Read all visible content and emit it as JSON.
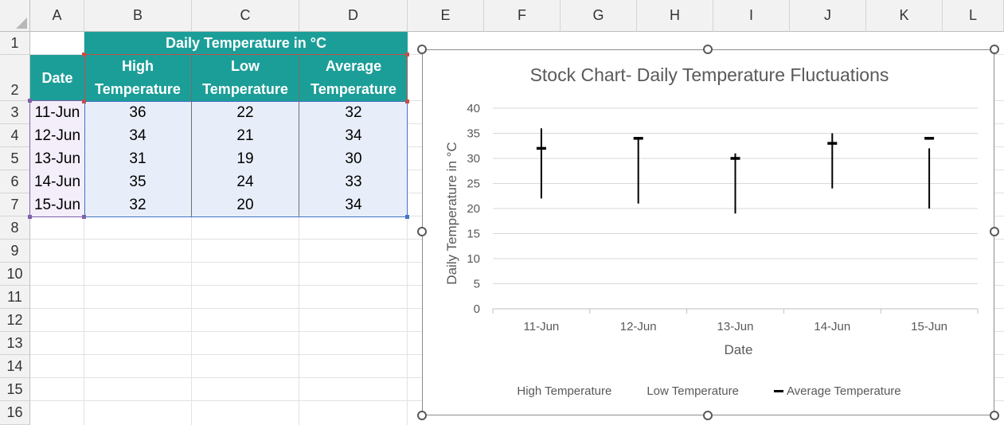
{
  "sheet": {
    "columns": [
      "A",
      "B",
      "C",
      "D",
      "E",
      "F",
      "G",
      "H",
      "I",
      "J",
      "K",
      "L"
    ],
    "rows": [
      "1",
      "2",
      "3",
      "4",
      "5",
      "6",
      "7",
      "8",
      "9",
      "10",
      "11",
      "12",
      "13",
      "14",
      "15",
      "16"
    ],
    "table": {
      "title": "Daily Temperature in °C",
      "date_header": "Date",
      "high_header_1": "High",
      "high_header_2": "Temperature",
      "low_header_1": "Low",
      "low_header_2": "Temperature",
      "avg_header_1": "Average",
      "avg_header_2": "Temperature",
      "rows": [
        {
          "date": "11-Jun",
          "high": "36",
          "low": "22",
          "avg": "32"
        },
        {
          "date": "12-Jun",
          "high": "34",
          "low": "21",
          "avg": "34"
        },
        {
          "date": "13-Jun",
          "high": "31",
          "low": "19",
          "avg": "30"
        },
        {
          "date": "14-Jun",
          "high": "35",
          "low": "24",
          "avg": "33"
        },
        {
          "date": "15-Jun",
          "high": "32",
          "low": "20",
          "avg": "34"
        }
      ]
    },
    "colors": {
      "header_fill": "#1c9e98",
      "data_fill": "#e8eef9",
      "date_fill": "#f3eefa"
    }
  },
  "chart_data": {
    "type": "stock",
    "title": "Stock Chart- Daily Temperature Fluctuations",
    "xlabel": "Date",
    "ylabel": "Daily Temperature in °C",
    "categories": [
      "11-Jun",
      "12-Jun",
      "13-Jun",
      "14-Jun",
      "15-Jun"
    ],
    "series": [
      {
        "name": "High Temperature",
        "values": [
          36,
          34,
          31,
          35,
          32
        ]
      },
      {
        "name": "Low Temperature",
        "values": [
          22,
          21,
          19,
          24,
          20
        ]
      },
      {
        "name": "Average Temperature",
        "values": [
          32,
          34,
          30,
          33,
          34
        ]
      }
    ],
    "ylim": [
      0,
      40
    ],
    "yticks": [
      0,
      5,
      10,
      15,
      20,
      25,
      30,
      35,
      40
    ],
    "grid": true,
    "legend_position": "bottom"
  }
}
